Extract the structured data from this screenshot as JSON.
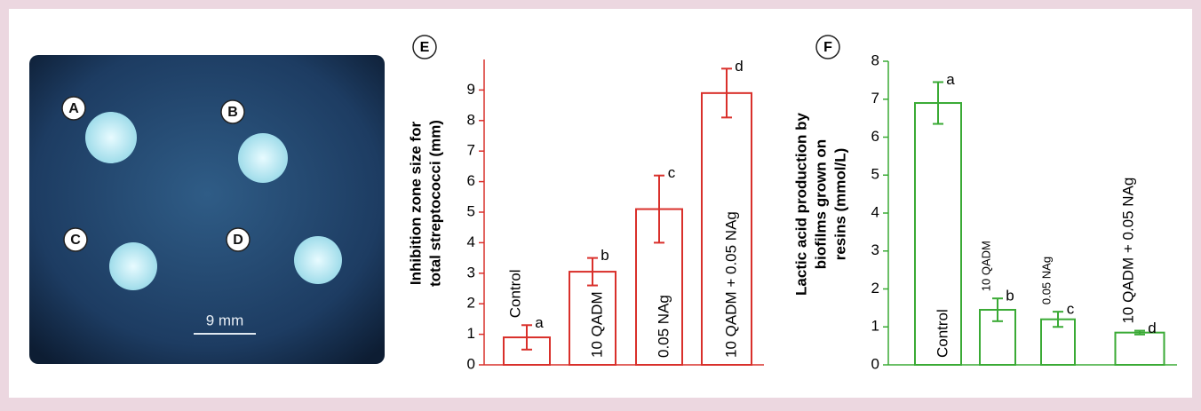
{
  "photo": {
    "labels": [
      "A",
      "B",
      "C",
      "D"
    ],
    "scale": "9 mm"
  },
  "chart_data": [
    {
      "type": "bar",
      "panel": "E",
      "ylabel": [
        "Inhibition zone size for",
        "total streptococci (mm)"
      ],
      "categories": [
        "Control",
        "10 QADM",
        "0.05 NAg",
        "10 QADM + 0.05 NAg"
      ],
      "values": [
        0.9,
        3.05,
        5.1,
        8.9
      ],
      "errors": [
        0.4,
        0.45,
        1.1,
        0.8
      ],
      "letters": [
        "a",
        "b",
        "c",
        "d"
      ],
      "color": "#d9302b",
      "ylim": [
        0,
        10
      ],
      "yticks": [
        0,
        1,
        2,
        3,
        4,
        5,
        6,
        7,
        8,
        9
      ]
    },
    {
      "type": "bar",
      "panel": "F",
      "ylabel": [
        "Lactic acid production by",
        "biofilms grown on",
        "resins (mmol/L)"
      ],
      "categories": [
        "Control",
        "10 QADM",
        "0.05 NAg",
        "10 QADM + 0.05 NAg"
      ],
      "values": [
        6.9,
        1.45,
        1.2,
        0.85
      ],
      "errors": [
        0.55,
        0.3,
        0.2,
        0.05
      ],
      "letters": [
        "a",
        "b",
        "c",
        "d"
      ],
      "color": "#3aaa35",
      "ylim": [
        0,
        8
      ],
      "yticks": [
        0,
        1,
        2,
        3,
        4,
        5,
        6,
        7,
        8
      ]
    }
  ]
}
